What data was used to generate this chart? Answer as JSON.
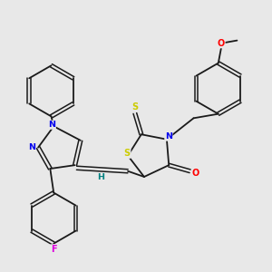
{
  "background_color": "#e8e8e8",
  "bond_color": "#1a1a1a",
  "figsize": [
    3.0,
    3.0
  ],
  "dpi": 100,
  "atom_colors": {
    "N": "#0000ee",
    "O": "#ff0000",
    "S": "#cccc00",
    "F": "#dd00dd",
    "H": "#008080",
    "C": "#1a1a1a"
  }
}
